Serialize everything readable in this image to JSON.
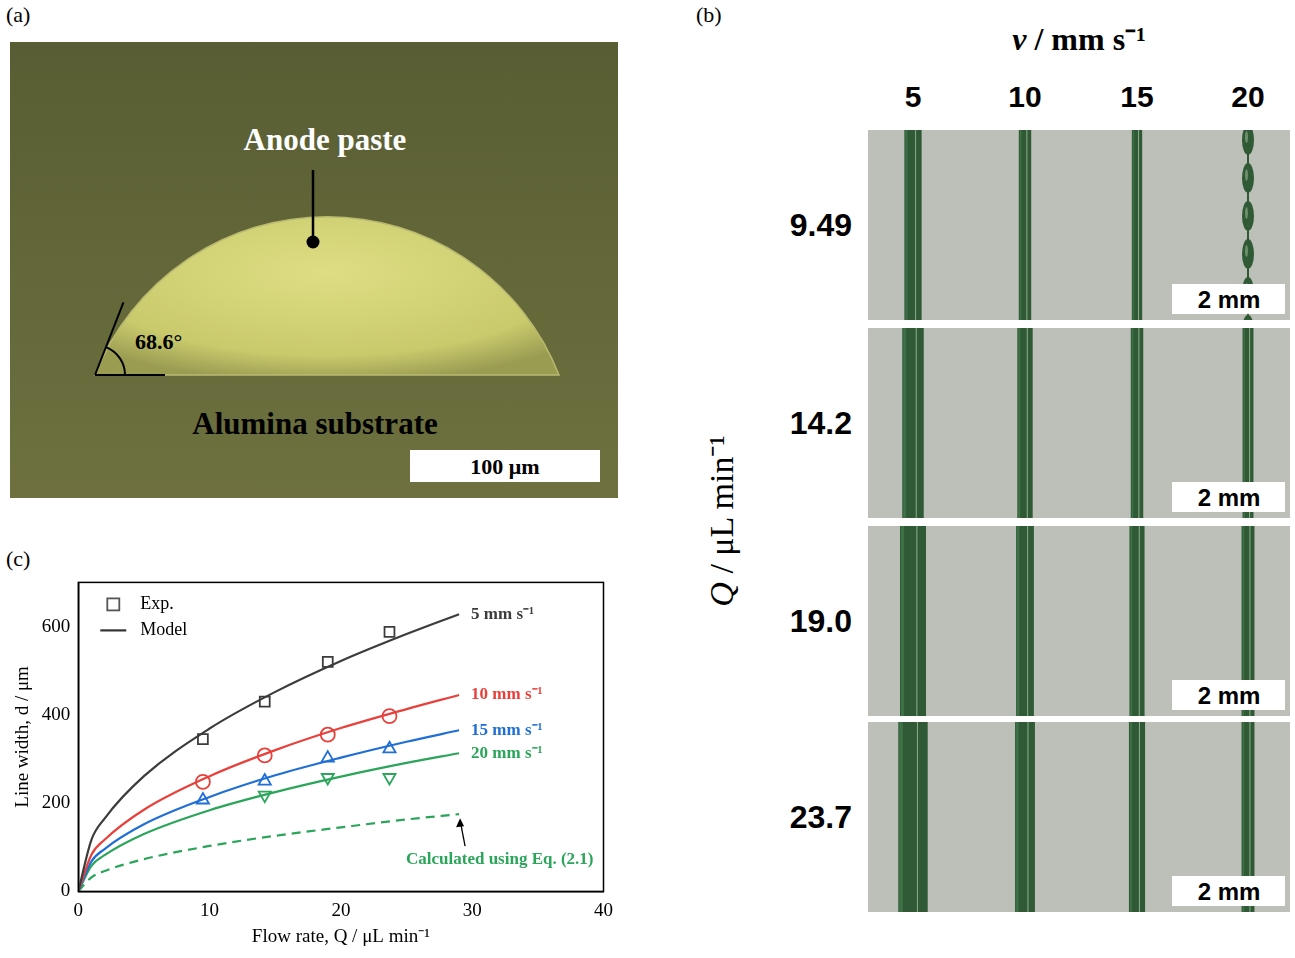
{
  "panel_a": {
    "label": "(a)",
    "paste_label": "Anode paste",
    "substrate_label": "Alumina substrate",
    "contact_angle": {
      "value": 68.6,
      "label": "68.6°"
    },
    "scale_bar": "100 μm"
  },
  "panel_b": {
    "label": "(b)",
    "x_title": "v / mm s⁻¹",
    "y_title": "Q / μL min⁻¹",
    "columns": [
      "5",
      "10",
      "15",
      "20"
    ],
    "rows": [
      "9.49",
      "14.2",
      "19.0",
      "23.7"
    ],
    "scale_bar": "2 mm"
  },
  "chart_data": {
    "label": "(c)",
    "type": "scatter",
    "x_title": "Flow rate, Q / μL min⁻¹",
    "y_title": "Line width, d / μm",
    "xlim": [
      0,
      40
    ],
    "xticks": [
      0,
      10,
      20,
      30,
      40
    ],
    "ylim": [
      0,
      700
    ],
    "yticks": [
      0,
      200,
      400,
      600
    ],
    "grid": false,
    "legend": "upper left",
    "legend_entries": [
      {
        "label": "Exp.",
        "marker": "square",
        "color": "#555555"
      },
      {
        "label": "Model",
        "line_style": "solid",
        "color": "#333333"
      }
    ],
    "x": [
      9.49,
      14.2,
      19.0,
      23.7
    ],
    "series": [
      {
        "name": "5 mm s⁻¹",
        "color": "#3c3c3c",
        "marker": "square",
        "values": [
          345,
          430,
          520,
          588
        ],
        "model": {
          "x": [
            0,
            1,
            2,
            5,
            10,
            15,
            20,
            25,
            29
          ],
          "values": [
            0,
            117,
            165,
            261,
            369,
            452,
            522,
            583,
            628
          ]
        }
      },
      {
        "name": "10 mm s⁻¹",
        "color": "#e8413c",
        "marker": "circle",
        "values": [
          248,
          308,
          355,
          397
        ],
        "model": {
          "x": [
            0,
            1,
            2,
            5,
            10,
            15,
            20,
            25,
            29
          ],
          "values": [
            0,
            83,
            117,
            185,
            261,
            320,
            370,
            413,
            445
          ]
        }
      },
      {
        "name": "15 mm s⁻¹",
        "color": "#1f6fd6",
        "marker": "triangle",
        "values": [
          207,
          250,
          302,
          323
        ],
        "model": {
          "x": [
            0,
            1,
            2,
            5,
            10,
            15,
            20,
            25,
            29
          ],
          "values": [
            0,
            68,
            96,
            152,
            214,
            263,
            303,
            339,
            365
          ]
        }
      },
      {
        "name": "20 mm s⁻¹",
        "color": "#2aa55a",
        "marker": "triangle_down",
        "values": [
          null,
          218,
          258,
          258
        ],
        "model": {
          "x": [
            0,
            1,
            2,
            5,
            10,
            15,
            20,
            25,
            29
          ],
          "values": [
            0,
            58,
            82,
            130,
            184,
            225,
            260,
            291,
            313
          ]
        }
      }
    ],
    "reference": {
      "name": "Calculated using Eq. (2.1)",
      "color": "#2aa55a",
      "line_style": "dashed",
      "x": [
        0,
        1,
        2,
        5,
        10,
        15,
        20,
        25,
        29
      ],
      "values": [
        0,
        32,
        46,
        73,
        103,
        126,
        145,
        163,
        175
      ]
    }
  }
}
